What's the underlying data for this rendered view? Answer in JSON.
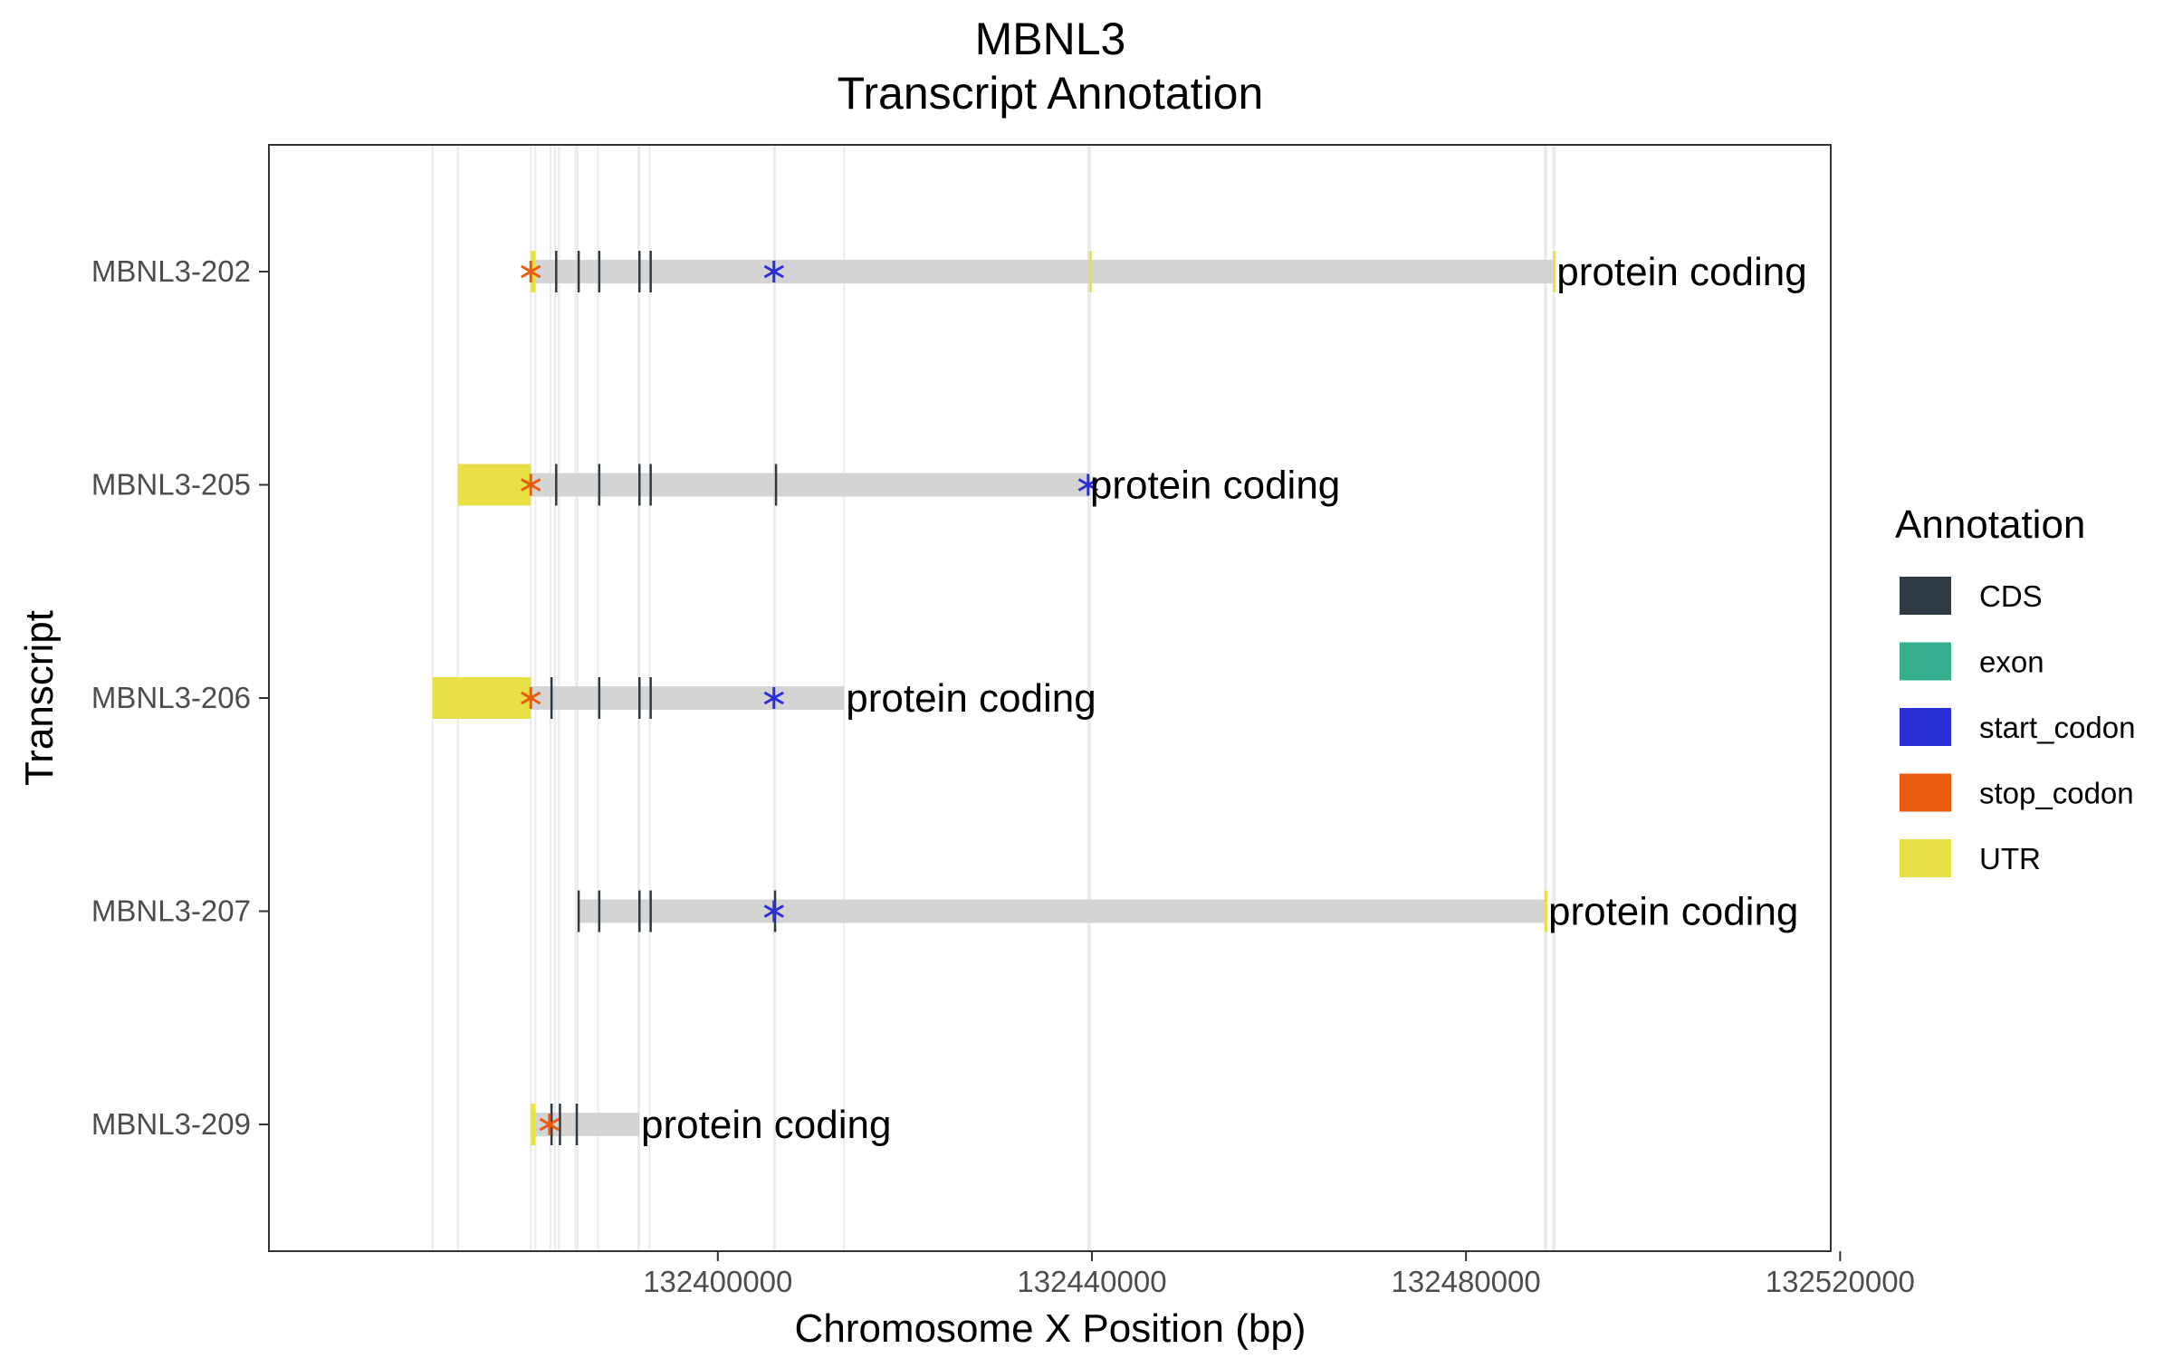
{
  "chart_data": {
    "type": "gene_track",
    "title": "MBNL3",
    "subtitle": "Transcript Annotation",
    "xlabel": "Chromosome X Position (bp)",
    "ylabel": "Transcript",
    "xlim": [
      132352000,
      132519000
    ],
    "xticks": [
      132400000,
      132440000,
      132480000,
      132520000
    ],
    "xtick_labels": [
      "132400000",
      "132440000",
      "132480000",
      "132520000"
    ],
    "grid": true,
    "legend": {
      "title": "Annotation",
      "position": "right",
      "items": [
        {
          "label": "CDS",
          "color": "#2e3b44"
        },
        {
          "label": "exon",
          "color": "#35ae8e"
        },
        {
          "label": "start_codon",
          "color": "#2a2fd6"
        },
        {
          "label": "stop_codon",
          "color": "#ea5a0f"
        },
        {
          "label": "UTR",
          "color": "#e8e045"
        }
      ]
    },
    "transcript_color": "#d4d4d4",
    "marker_colors": {
      "start": "#2a2fd6",
      "stop": "#ea5a0f"
    },
    "transcripts": [
      {
        "name": "MBNL3-209",
        "label": "protein coding",
        "start": 132380000,
        "end": 132391600,
        "utr": [
          [
            132380000,
            132380500
          ]
        ],
        "cds": [
          [
            132382100,
            132382200
          ],
          [
            132383000,
            132383100
          ],
          [
            132384800,
            132384900
          ]
        ],
        "start_codon": null,
        "stop_codon": 132382000
      },
      {
        "name": "MBNL3-207",
        "label": "protein coding",
        "start": 132385000,
        "end": 132488600,
        "utr": [
          [
            132488400,
            132488600
          ]
        ],
        "cds": [
          [
            132385000,
            132385100
          ],
          [
            132387200,
            132387300
          ],
          [
            132391500,
            132391600
          ],
          [
            132392700,
            132392800
          ],
          [
            132406000,
            132406100
          ]
        ],
        "start_codon": 132406000,
        "stop_codon": null
      },
      {
        "name": "MBNL3-206",
        "label": "protein coding",
        "start": 132369500,
        "end": 132413500,
        "utr": [
          [
            132369500,
            132380000
          ]
        ],
        "cds": [
          [
            132382100,
            132382200
          ],
          [
            132387200,
            132387300
          ],
          [
            132391500,
            132391600
          ],
          [
            132392700,
            132392800
          ]
        ],
        "start_codon": 132406000,
        "stop_codon": 132380000
      },
      {
        "name": "MBNL3-205",
        "label": "protein coding",
        "start": 132372200,
        "end": 132439600,
        "utr": [
          [
            132372200,
            132380000
          ]
        ],
        "cds": [
          [
            132382600,
            132382700
          ],
          [
            132387200,
            132387300
          ],
          [
            132391500,
            132391600
          ],
          [
            132392700,
            132392800
          ],
          [
            132406100,
            132406200
          ]
        ],
        "start_codon": 132439600,
        "stop_codon": 132380000
      },
      {
        "name": "MBNL3-202",
        "label": "protein coding",
        "start": 132380000,
        "end": 132489500,
        "utr": [
          [
            132380000,
            132380500
          ],
          [
            132439700,
            132439800
          ],
          [
            132489300,
            132489500
          ]
        ],
        "cds": [
          [
            132382600,
            132382700
          ],
          [
            132385000,
            132385100
          ],
          [
            132387200,
            132387300
          ],
          [
            132391500,
            132391600
          ],
          [
            132392700,
            132392800
          ]
        ],
        "start_codon": 132406000,
        "stop_codon": 132380000
      }
    ]
  }
}
